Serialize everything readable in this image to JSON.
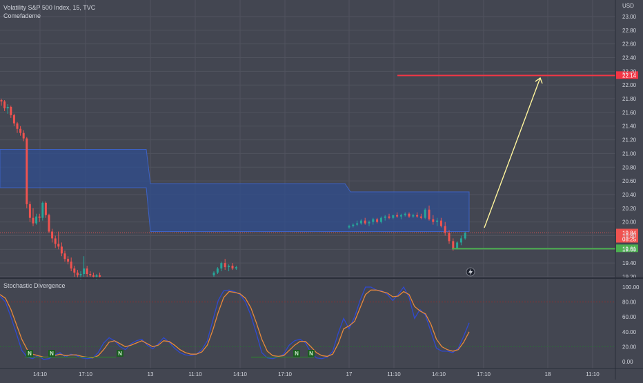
{
  "header": {
    "title": "Volatility S&P 500 Index, 15, TVC",
    "indicator": "Comefademe",
    "currency": "USD"
  },
  "colors": {
    "background": "#434651",
    "grid": "#50535e",
    "up": "#26a69a",
    "down": "#ef5350",
    "channel_fill": "#2f4d8f",
    "channel_line": "#3d62c4",
    "target_line": "#f23645",
    "support_line": "#4caf50",
    "arrow": "#fff59d",
    "k_line": "#2f49d1",
    "d_line": "#e8893b",
    "signal_line": "#2e7d32",
    "overbought": "#8a3030"
  },
  "chart_data": [
    {
      "type": "candlestick",
      "title": "Volatility S&P 500 Index, 15, TVC",
      "ylabel": "USD",
      "ylim": [
        19.2,
        23.1
      ],
      "y_ticks": [
        "23.00",
        "22.80",
        "22.60",
        "22.40",
        "22.20",
        "22.00",
        "21.80",
        "21.60",
        "21.40",
        "21.20",
        "21.00",
        "20.80",
        "20.60",
        "20.40",
        "20.20",
        "20.00",
        "19.80",
        "19.60",
        "19.40",
        "19.20"
      ],
      "x_ticks": [
        "14:10",
        "17:10",
        "13",
        "11:10",
        "14:10",
        "17:10",
        "17",
        "11:10",
        "14:10",
        "17:10",
        "18",
        "11:10"
      ],
      "candles_session_1": [
        [
          21.78,
          21.8,
          21.7,
          21.76
        ],
        [
          21.76,
          21.78,
          21.62,
          21.66
        ],
        [
          21.66,
          21.72,
          21.58,
          21.68
        ],
        [
          21.68,
          21.7,
          21.52,
          21.56
        ],
        [
          21.56,
          21.58,
          21.4,
          21.44
        ],
        [
          21.44,
          21.46,
          21.3,
          21.36
        ],
        [
          21.36,
          21.4,
          21.26,
          21.3
        ],
        [
          21.3,
          21.34,
          21.18,
          21.22
        ],
        [
          21.22,
          21.24,
          20.2,
          20.26
        ],
        [
          20.26,
          20.3,
          20.0,
          20.06
        ],
        [
          20.06,
          20.2,
          19.94,
          19.98
        ],
        [
          19.98,
          20.12,
          19.96,
          20.08
        ],
        [
          20.08,
          20.12,
          20.0,
          20.06
        ],
        [
          20.06,
          20.3,
          20.02,
          20.28
        ],
        [
          20.28,
          20.3,
          20.06,
          20.1
        ],
        [
          20.1,
          20.12,
          19.84,
          19.86
        ],
        [
          19.86,
          19.9,
          19.7,
          19.76
        ],
        [
          19.76,
          19.8,
          19.62,
          19.68
        ],
        [
          19.68,
          19.86,
          19.6,
          19.64
        ],
        [
          19.64,
          19.7,
          19.5,
          19.54
        ],
        [
          19.54,
          19.58,
          19.42,
          19.46
        ],
        [
          19.46,
          19.5,
          19.38,
          19.42
        ],
        [
          19.42,
          19.48,
          19.28,
          19.32
        ],
        [
          19.32,
          19.36,
          19.2,
          19.26
        ],
        [
          19.26,
          19.3,
          19.18,
          19.22
        ],
        [
          19.22,
          19.28,
          19.16,
          19.24
        ],
        [
          19.24,
          19.5,
          19.2,
          19.32
        ],
        [
          19.32,
          19.36,
          19.2,
          19.24
        ],
        [
          19.24,
          19.28,
          19.2,
          19.22
        ],
        [
          19.22,
          19.26,
          19.18,
          19.2
        ],
        [
          19.2,
          19.24,
          19.16,
          19.22
        ],
        [
          19.22,
          19.26,
          19.18,
          19.2
        ]
      ],
      "candles_session_2": [
        [
          19.22,
          19.28,
          19.2,
          19.26
        ],
        [
          19.26,
          19.34,
          19.24,
          19.32
        ],
        [
          19.32,
          19.42,
          19.28,
          19.4
        ],
        [
          19.4,
          19.46,
          19.3,
          19.34
        ],
        [
          19.34,
          19.38,
          19.28,
          19.36
        ],
        [
          19.36,
          19.4,
          19.3,
          19.32
        ],
        [
          19.32,
          19.36,
          19.3,
          19.34
        ]
      ],
      "candles_session_3": [
        [
          19.92,
          19.96,
          19.9,
          19.94
        ],
        [
          19.94,
          19.98,
          19.92,
          19.96
        ],
        [
          19.96,
          20.02,
          19.94,
          19.98
        ],
        [
          19.98,
          20.04,
          19.96,
          20.02
        ],
        [
          20.02,
          20.06,
          19.96,
          19.98
        ],
        [
          19.98,
          20.02,
          19.94,
          20.0
        ],
        [
          20.0,
          20.06,
          19.96,
          20.04
        ],
        [
          20.04,
          20.06,
          19.98,
          20.0
        ],
        [
          20.0,
          20.08,
          19.98,
          20.06
        ],
        [
          20.06,
          20.1,
          20.02,
          20.08
        ],
        [
          20.08,
          20.12,
          20.04,
          20.06
        ],
        [
          20.06,
          20.1,
          20.04,
          20.1
        ],
        [
          20.1,
          20.14,
          20.06,
          20.08
        ],
        [
          20.08,
          20.12,
          20.04,
          20.1
        ],
        [
          20.1,
          20.14,
          20.08,
          20.12
        ],
        [
          20.12,
          20.14,
          20.06,
          20.08
        ],
        [
          20.08,
          20.12,
          20.06,
          20.1
        ],
        [
          20.1,
          20.14,
          20.06,
          20.08
        ],
        [
          20.08,
          20.12,
          20.04,
          20.06
        ],
        [
          20.06,
          20.2,
          20.04,
          20.18
        ],
        [
          20.18,
          20.24,
          20.02,
          20.04
        ],
        [
          20.04,
          20.1,
          19.96,
          20.0
        ],
        [
          20.0,
          20.06,
          19.94,
          20.02
        ],
        [
          20.02,
          20.06,
          19.92,
          19.94
        ],
        [
          19.94,
          20.0,
          19.8,
          19.84
        ],
        [
          19.84,
          19.88,
          19.68,
          19.72
        ],
        [
          19.72,
          19.76,
          19.58,
          19.62
        ],
        [
          19.62,
          19.72,
          19.6,
          19.7
        ],
        [
          19.7,
          19.8,
          19.66,
          19.76
        ],
        [
          19.76,
          19.86,
          19.74,
          19.84
        ]
      ],
      "channel": [
        {
          "from": "14:10",
          "to": "17:10",
          "top": 21.06,
          "bottom": 20.5
        },
        {
          "from": "13",
          "to": "17",
          "top": 20.56,
          "bottom": 19.86
        },
        {
          "from": "17",
          "to": "17:10",
          "top": 20.44,
          "bottom": 19.86
        }
      ],
      "target_level": 22.14,
      "support_level": 19.61,
      "last_price": 19.84,
      "price_labels": {
        "target": "22.14",
        "last": "19.84",
        "countdown": "08:25",
        "support": "19.61"
      },
      "annotations": [
        "projected-up-arrow"
      ]
    },
    {
      "type": "line",
      "title": "Stochastic Divergence",
      "ylim": [
        -5,
        105
      ],
      "y_ticks": [
        "100.00",
        "80.00",
        "60.00",
        "40.00",
        "20.00",
        "0.00"
      ],
      "overbought": 80,
      "oversold": 20,
      "series": [
        {
          "values": [
            88,
            80,
            60,
            38,
            15,
            6,
            4,
            8,
            3,
            4,
            9,
            12,
            6,
            10,
            8,
            5,
            4,
            5,
            12,
            25,
            32,
            28,
            20,
            16,
            24,
            28,
            30,
            22,
            17,
            24,
            32,
            26,
            18,
            12,
            9,
            8,
            10,
            16,
            28,
            55,
            82,
            95,
            96,
            94,
            90,
            80,
            62,
            38,
            12,
            5,
            4,
            6,
            10,
            22,
            28,
            30,
            25,
            12,
            5,
            4,
            6,
            14,
            38,
            58,
            44,
            60,
            82,
            100,
            100,
            96,
            95,
            90,
            82,
            90,
            100,
            86,
            58,
            70,
            62,
            40,
            18,
            14,
            14,
            12,
            18,
            34,
            52
          ]
        },
        {
          "values": [
            90,
            85,
            70,
            50,
            30,
            16,
            10,
            8,
            6,
            6,
            8,
            10,
            8,
            9,
            9,
            7,
            6,
            5,
            8,
            16,
            26,
            28,
            24,
            20,
            22,
            25,
            28,
            24,
            20,
            22,
            28,
            27,
            22,
            16,
            12,
            10,
            10,
            13,
            22,
            42,
            66,
            86,
            94,
            93,
            91,
            85,
            72,
            52,
            30,
            14,
            8,
            7,
            8,
            15,
            22,
            27,
            27,
            20,
            12,
            8,
            7,
            10,
            24,
            44,
            48,
            54,
            72,
            90,
            96,
            96,
            94,
            92,
            87,
            88,
            94,
            90,
            74,
            68,
            64,
            50,
            30,
            20,
            16,
            14,
            16,
            26,
            40
          ]
        }
      ],
      "markers": [
        "N",
        "N",
        "N",
        "N",
        "N"
      ]
    }
  ]
}
